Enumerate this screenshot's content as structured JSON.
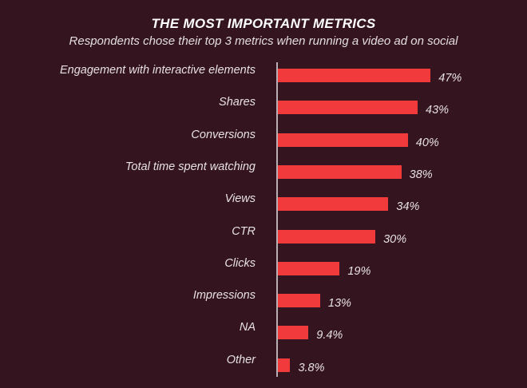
{
  "header": {
    "title": "THE MOST IMPORTANT METRICS",
    "subtitle": "Respondents chose their top 3 metrics when running a video ad on social"
  },
  "colors": {
    "background": "#33141f",
    "bar": "#f03a3c",
    "axis": "#b8aeb3",
    "text": "#e8e1e4"
  },
  "chart_data": {
    "type": "bar",
    "orientation": "horizontal",
    "title": "THE MOST IMPORTANT METRICS",
    "subtitle": "Respondents chose their top 3 metrics when running a video ad on social",
    "xlabel": "",
    "ylabel": "",
    "unit": "%",
    "grid": false,
    "legend": null,
    "categories": [
      "Engagement with interactive elements",
      "Shares",
      "Conversions",
      "Total time spent watching",
      "Views",
      "CTR",
      "Clicks",
      "Impressions",
      "NA",
      "Other"
    ],
    "values": [
      47,
      43,
      40,
      38,
      34,
      30,
      19,
      13,
      9.4,
      3.8
    ],
    "value_labels": [
      "47%",
      "43%",
      "40%",
      "38%",
      "34%",
      "30%",
      "19%",
      "13%",
      "9.4%",
      "3.8%"
    ]
  }
}
